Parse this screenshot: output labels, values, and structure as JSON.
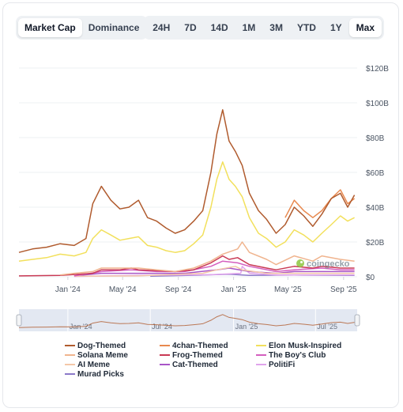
{
  "tabs": {
    "metric": [
      {
        "label": "Market Cap",
        "active": true
      },
      {
        "label": "Dominance",
        "active": false
      }
    ],
    "ranges": [
      {
        "label": "24H",
        "active": false
      },
      {
        "label": "7D",
        "active": false
      },
      {
        "label": "14D",
        "active": false
      },
      {
        "label": "1M",
        "active": false
      },
      {
        "label": "3M",
        "active": false
      },
      {
        "label": "YTD",
        "active": false
      },
      {
        "label": "1Y",
        "active": false
      },
      {
        "label": "Max",
        "active": true
      }
    ]
  },
  "watermark": "coingecko",
  "chart_data": {
    "type": "line",
    "y_ticks": [
      "$0",
      "$20B",
      "$40B",
      "$60B",
      "$80B",
      "$100B",
      "$120B"
    ],
    "ylim": [
      0,
      120
    ],
    "y_unit": "USD billions",
    "x_ticks": [
      "Jan '24",
      "May '24",
      "Sep '24",
      "Jan '25",
      "May '25",
      "Sep '25"
    ],
    "x_tick_dates": [
      "2024-01-01",
      "2024-05-01",
      "2024-09-01",
      "2025-01-01",
      "2025-05-01",
      "2025-09-01"
    ],
    "x_range": [
      "2023-09-15",
      "2025-10-01"
    ],
    "grid": true,
    "legend_position": "bottom",
    "navigator": {
      "x_ticks": [
        "Jan '24",
        "Jul '24",
        "Jan '25",
        "Jul '25"
      ],
      "x_tick_dates": [
        "2024-01-01",
        "2024-07-01",
        "2025-01-01",
        "2025-07-01"
      ]
    },
    "series": [
      {
        "name": "Dog-Themed",
        "color": "#b05b2e",
        "points": [
          [
            "2023-09-15",
            14
          ],
          [
            "2023-10-15",
            16
          ],
          [
            "2023-11-15",
            17
          ],
          [
            "2023-12-15",
            19
          ],
          [
            "2024-01-15",
            18
          ],
          [
            "2024-02-10",
            22
          ],
          [
            "2024-02-25",
            42
          ],
          [
            "2024-03-15",
            52
          ],
          [
            "2024-04-05",
            44
          ],
          [
            "2024-04-25",
            39
          ],
          [
            "2024-05-15",
            40
          ],
          [
            "2024-06-05",
            44
          ],
          [
            "2024-06-25",
            34
          ],
          [
            "2024-07-15",
            32
          ],
          [
            "2024-08-05",
            28
          ],
          [
            "2024-08-25",
            25
          ],
          [
            "2024-09-15",
            27
          ],
          [
            "2024-10-05",
            32
          ],
          [
            "2024-10-25",
            38
          ],
          [
            "2024-11-12",
            60
          ],
          [
            "2024-11-25",
            82
          ],
          [
            "2024-12-08",
            96
          ],
          [
            "2024-12-22",
            78
          ],
          [
            "2025-01-05",
            72
          ],
          [
            "2025-01-20",
            64
          ],
          [
            "2025-02-05",
            48
          ],
          [
            "2025-02-25",
            38
          ],
          [
            "2025-03-15",
            33
          ],
          [
            "2025-04-05",
            25
          ],
          [
            "2025-04-25",
            30
          ],
          [
            "2025-05-15",
            40
          ],
          [
            "2025-06-05",
            35
          ],
          [
            "2025-06-25",
            29
          ],
          [
            "2025-07-15",
            36
          ],
          [
            "2025-08-05",
            45
          ],
          [
            "2025-08-25",
            48
          ],
          [
            "2025-09-10",
            40
          ],
          [
            "2025-09-25",
            47
          ]
        ]
      },
      {
        "name": "4chan-Themed",
        "color": "#e8894f",
        "points": [
          [
            "2025-04-25",
            34
          ],
          [
            "2025-05-15",
            44
          ],
          [
            "2025-06-05",
            38
          ],
          [
            "2025-06-25",
            34
          ],
          [
            "2025-07-15",
            38
          ],
          [
            "2025-08-05",
            45
          ],
          [
            "2025-08-25",
            50
          ],
          [
            "2025-09-10",
            42
          ],
          [
            "2025-09-25",
            45
          ]
        ]
      },
      {
        "name": "Elon Musk-Inspired",
        "color": "#f2e05c",
        "points": [
          [
            "2023-09-15",
            9
          ],
          [
            "2023-10-15",
            10
          ],
          [
            "2023-11-15",
            11
          ],
          [
            "2023-12-15",
            13
          ],
          [
            "2024-01-15",
            12
          ],
          [
            "2024-02-10",
            14
          ],
          [
            "2024-02-25",
            22
          ],
          [
            "2024-03-15",
            27
          ],
          [
            "2024-04-05",
            24
          ],
          [
            "2024-04-25",
            21
          ],
          [
            "2024-05-15",
            22
          ],
          [
            "2024-06-05",
            23
          ],
          [
            "2024-06-25",
            18
          ],
          [
            "2024-07-15",
            17
          ],
          [
            "2024-08-05",
            15
          ],
          [
            "2024-08-25",
            14
          ],
          [
            "2024-09-15",
            15
          ],
          [
            "2024-10-05",
            19
          ],
          [
            "2024-10-25",
            24
          ],
          [
            "2024-11-12",
            40
          ],
          [
            "2024-11-25",
            56
          ],
          [
            "2024-12-08",
            66
          ],
          [
            "2024-12-22",
            56
          ],
          [
            "2025-01-05",
            52
          ],
          [
            "2025-01-20",
            46
          ],
          [
            "2025-02-05",
            34
          ],
          [
            "2025-02-25",
            25
          ],
          [
            "2025-03-15",
            22
          ],
          [
            "2025-04-05",
            17
          ],
          [
            "2025-04-25",
            20
          ],
          [
            "2025-05-15",
            27
          ],
          [
            "2025-06-05",
            24
          ],
          [
            "2025-06-25",
            20
          ],
          [
            "2025-07-15",
            25
          ],
          [
            "2025-08-05",
            30
          ],
          [
            "2025-08-25",
            35
          ],
          [
            "2025-09-10",
            32
          ],
          [
            "2025-09-25",
            34
          ]
        ]
      },
      {
        "name": "Solana Meme",
        "color": "#f0b48e",
        "points": [
          [
            "2023-12-15",
            1
          ],
          [
            "2024-01-15",
            2
          ],
          [
            "2024-02-25",
            3
          ],
          [
            "2024-03-15",
            5
          ],
          [
            "2024-04-25",
            5
          ],
          [
            "2024-06-05",
            5
          ],
          [
            "2024-07-15",
            4
          ],
          [
            "2024-08-25",
            3
          ],
          [
            "2024-10-05",
            5
          ],
          [
            "2024-11-12",
            9
          ],
          [
            "2024-12-08",
            13
          ],
          [
            "2025-01-10",
            16
          ],
          [
            "2025-01-20",
            20
          ],
          [
            "2025-02-05",
            14
          ],
          [
            "2025-03-15",
            10
          ],
          [
            "2025-04-05",
            7
          ],
          [
            "2025-05-15",
            12
          ],
          [
            "2025-06-25",
            9
          ],
          [
            "2025-07-15",
            12
          ],
          [
            "2025-08-25",
            10
          ],
          [
            "2025-09-25",
            9
          ]
        ]
      },
      {
        "name": "Frog-Themed",
        "color": "#c93954",
        "points": [
          [
            "2023-09-15",
            0.5
          ],
          [
            "2023-12-15",
            0.8
          ],
          [
            "2024-02-25",
            2
          ],
          [
            "2024-03-15",
            4
          ],
          [
            "2024-04-25",
            4
          ],
          [
            "2024-05-20",
            5
          ],
          [
            "2024-06-05",
            4
          ],
          [
            "2024-08-25",
            3
          ],
          [
            "2024-10-05",
            4
          ],
          [
            "2024-11-12",
            8
          ],
          [
            "2024-12-08",
            12
          ],
          [
            "2024-12-22",
            10
          ],
          [
            "2025-01-10",
            11
          ],
          [
            "2025-02-05",
            7
          ],
          [
            "2025-03-15",
            5
          ],
          [
            "2025-04-05",
            4
          ],
          [
            "2025-05-15",
            6
          ],
          [
            "2025-06-25",
            5
          ],
          [
            "2025-07-15",
            6
          ],
          [
            "2025-08-25",
            5
          ],
          [
            "2025-09-25",
            5
          ]
        ]
      },
      {
        "name": "The Boy's Club",
        "color": "#d45fbf",
        "points": [
          [
            "2024-01-15",
            0.5
          ],
          [
            "2024-03-15",
            3
          ],
          [
            "2024-05-20",
            4
          ],
          [
            "2024-07-15",
            3
          ],
          [
            "2024-09-15",
            3
          ],
          [
            "2024-11-12",
            6
          ],
          [
            "2024-12-08",
            9
          ],
          [
            "2025-01-10",
            8
          ],
          [
            "2025-02-05",
            6
          ],
          [
            "2025-04-05",
            3
          ],
          [
            "2025-05-15",
            4
          ],
          [
            "2025-07-15",
            5
          ],
          [
            "2025-08-25",
            4
          ],
          [
            "2025-09-25",
            4
          ]
        ]
      },
      {
        "name": "AI Meme",
        "color": "#f4c7a8",
        "points": [
          [
            "2024-01-15",
            0.3
          ],
          [
            "2024-06-05",
            0.5
          ],
          [
            "2024-10-25",
            2
          ],
          [
            "2024-11-25",
            4
          ],
          [
            "2025-01-05",
            6
          ],
          [
            "2025-01-20",
            4
          ],
          [
            "2025-03-15",
            2
          ],
          [
            "2025-05-15",
            2
          ],
          [
            "2025-07-15",
            2
          ],
          [
            "2025-09-25",
            2
          ]
        ]
      },
      {
        "name": "Cat-Themed",
        "color": "#a855c7",
        "points": [
          [
            "2024-01-15",
            0.5
          ],
          [
            "2024-03-15",
            2
          ],
          [
            "2024-05-20",
            2
          ],
          [
            "2024-09-15",
            2
          ],
          [
            "2024-11-25",
            4
          ],
          [
            "2024-12-22",
            5
          ],
          [
            "2025-02-05",
            3
          ],
          [
            "2025-04-05",
            2
          ],
          [
            "2025-05-15",
            3
          ],
          [
            "2025-07-15",
            3
          ],
          [
            "2025-09-25",
            3
          ]
        ]
      },
      {
        "name": "PolitiFi",
        "color": "#e0a4ec",
        "points": [
          [
            "2024-01-15",
            0.2
          ],
          [
            "2024-06-05",
            0.8
          ],
          [
            "2024-11-12",
            1.2
          ],
          [
            "2025-01-17",
            2
          ],
          [
            "2025-01-20",
            6
          ],
          [
            "2025-02-05",
            2
          ],
          [
            "2025-04-05",
            1
          ],
          [
            "2025-09-25",
            1
          ]
        ]
      },
      {
        "name": "Murad Picks",
        "color": "#8b79c9",
        "points": [
          [
            "2024-07-01",
            0.3
          ],
          [
            "2024-10-25",
            1
          ],
          [
            "2024-12-22",
            1.5
          ],
          [
            "2025-02-05",
            0.8
          ],
          [
            "2025-05-15",
            1
          ],
          [
            "2025-09-25",
            0.8
          ]
        ]
      }
    ]
  }
}
